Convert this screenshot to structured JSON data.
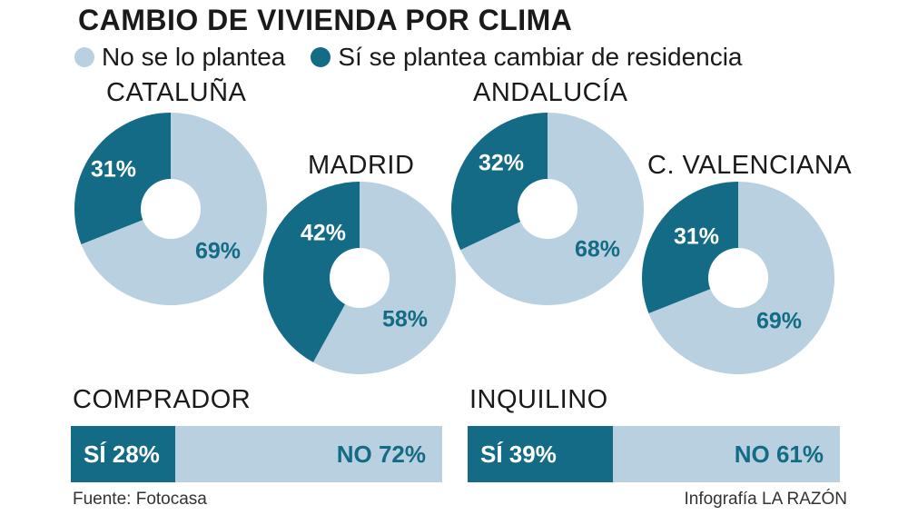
{
  "title": "CAMBIO DE VIVIENDA POR CLIMA",
  "legend": [
    {
      "label": "No se lo plantea",
      "color": "#b9d0e0"
    },
    {
      "label": "Sí se plantea cambiar de residencia",
      "color": "#136b86"
    }
  ],
  "colors": {
    "no": "#b9d0e0",
    "yes": "#136b86",
    "white": "#ffffff"
  },
  "chart_data": [
    {
      "type": "pie",
      "title": "CATALUÑA",
      "series": [
        {
          "name": "Sí se plantea cambiar de residencia",
          "value": 31,
          "label": "31%"
        },
        {
          "name": "No se lo plantea",
          "value": 69,
          "label": "69%"
        }
      ]
    },
    {
      "type": "pie",
      "title": "MADRID",
      "series": [
        {
          "name": "Sí se plantea cambiar de residencia",
          "value": 42,
          "label": "42%"
        },
        {
          "name": "No se lo plantea",
          "value": 58,
          "label": "58%"
        }
      ]
    },
    {
      "type": "pie",
      "title": "ANDALUCÍA",
      "series": [
        {
          "name": "Sí se plantea cambiar de residencia",
          "value": 32,
          "label": "32%"
        },
        {
          "name": "No se lo plantea",
          "value": 68,
          "label": "68%"
        }
      ]
    },
    {
      "type": "pie",
      "title": "C. VALENCIANA",
      "series": [
        {
          "name": "Sí se plantea cambiar de residencia",
          "value": 31,
          "label": "31%"
        },
        {
          "name": "No se lo plantea",
          "value": 69,
          "label": "69%"
        }
      ]
    },
    {
      "type": "bar",
      "title": "COMPRADOR",
      "categories": [
        "SÍ",
        "NO"
      ],
      "values": [
        28,
        72
      ],
      "labels": [
        "SÍ 28%",
        "NO 72%"
      ]
    },
    {
      "type": "bar",
      "title": "INQUILINO",
      "categories": [
        "SÍ",
        "NO"
      ],
      "values": [
        39,
        61
      ],
      "labels": [
        "SÍ 39%",
        "NO 61%"
      ]
    }
  ],
  "footer": {
    "source": "Fuente: Fotocasa",
    "credit": "Infografía LA RAZÓN"
  }
}
